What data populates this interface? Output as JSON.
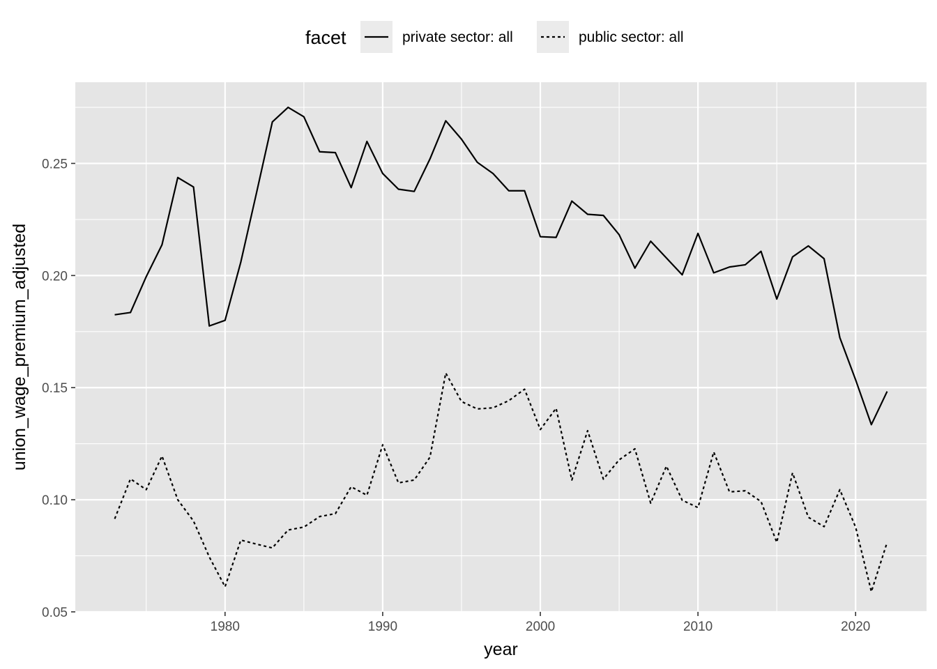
{
  "chart_data": {
    "type": "line",
    "xlabel": "year",
    "ylabel": "union_wage_premium_adjusted",
    "xlim": [
      1970.5,
      2024.5
    ],
    "ylim": [
      0.05,
      0.2862
    ],
    "x_ticks": [
      1980,
      1990,
      2000,
      2010,
      2020
    ],
    "x_tick_labels": [
      "1980",
      "1990",
      "2000",
      "2010",
      "2020"
    ],
    "y_ticks": [
      0.05,
      0.1,
      0.15,
      0.2,
      0.25
    ],
    "y_tick_labels": [
      "0.05",
      "0.10",
      "0.15",
      "0.20",
      "0.25"
    ],
    "grid": true,
    "background": "#e5e5e5",
    "grid_color": "#ffffff",
    "legend": {
      "position": "top",
      "title": "facet"
    },
    "x": [
      1973,
      1974,
      1975,
      1976,
      1977,
      1978,
      1979,
      1980,
      1981,
      1982,
      1983,
      1984,
      1985,
      1986,
      1987,
      1988,
      1989,
      1990,
      1991,
      1992,
      1993,
      1994,
      1995,
      1996,
      1997,
      1998,
      1999,
      2000,
      2001,
      2002,
      2003,
      2004,
      2005,
      2006,
      2007,
      2008,
      2009,
      2010,
      2011,
      2012,
      2013,
      2014,
      2015,
      2016,
      2017,
      2018,
      2019,
      2020,
      2021,
      2022
    ],
    "series": [
      {
        "name": "private sector: all",
        "line_style": "solid",
        "color": "#000000",
        "values": [
          0.1825,
          0.1835,
          0.1995,
          0.2137,
          0.2437,
          0.2395,
          0.1775,
          0.18,
          0.206,
          0.237,
          0.2685,
          0.275,
          0.2708,
          0.2552,
          0.2548,
          0.2392,
          0.2598,
          0.2455,
          0.2385,
          0.2375,
          0.252,
          0.269,
          0.2608,
          0.2505,
          0.2455,
          0.2378,
          0.2378,
          0.2173,
          0.217,
          0.2332,
          0.2273,
          0.2268,
          0.2182,
          0.2033,
          0.2153,
          0.2078,
          0.2003,
          0.2188,
          0.2012,
          0.2038,
          0.2048,
          0.2108,
          0.1895,
          0.2083,
          0.2132,
          0.2075,
          0.1723,
          0.1535,
          0.1335,
          0.1483
        ]
      },
      {
        "name": "public sector: all",
        "line_style": "dotted",
        "color": "#000000",
        "values": [
          0.0915,
          0.1093,
          0.1045,
          0.1195,
          0.1,
          0.0905,
          0.0745,
          0.0612,
          0.082,
          0.0802,
          0.0785,
          0.0865,
          0.0878,
          0.0925,
          0.0938,
          0.1058,
          0.102,
          0.1245,
          0.1075,
          0.1088,
          0.119,
          0.1565,
          0.1438,
          0.1405,
          0.141,
          0.1442,
          0.1493,
          0.1313,
          0.1408,
          0.1088,
          0.1308,
          0.1092,
          0.1178,
          0.1227,
          0.0985,
          0.115,
          0.0998,
          0.0965,
          0.1213,
          0.1035,
          0.104,
          0.0992,
          0.081,
          0.112,
          0.0922,
          0.088,
          0.1045,
          0.0878,
          0.059,
          0.081
        ]
      }
    ]
  }
}
